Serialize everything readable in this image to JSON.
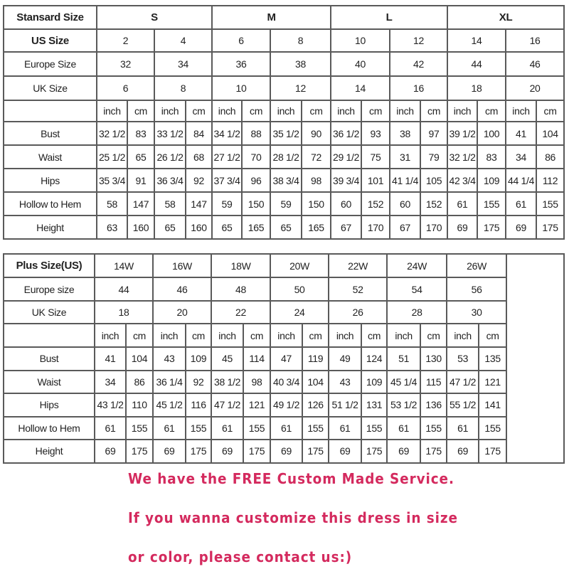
{
  "standard": {
    "header_label": "Stansard Size",
    "groups": [
      "S",
      "M",
      "L",
      "XL"
    ],
    "us_label": "US Size",
    "us": [
      "2",
      "4",
      "6",
      "8",
      "10",
      "12",
      "14",
      "16"
    ],
    "europe_label": "Europe Size",
    "europe": [
      "32",
      "34",
      "36",
      "38",
      "40",
      "42",
      "44",
      "46"
    ],
    "uk_label": "UK Size",
    "uk": [
      "6",
      "8",
      "10",
      "12",
      "14",
      "16",
      "18",
      "20"
    ],
    "units": [
      "inch",
      "cm"
    ],
    "measurements": [
      {
        "label": "Bust",
        "values": [
          "32 1/2",
          "83",
          "33 1/2",
          "84",
          "34 1/2",
          "88",
          "35 1/2",
          "90",
          "36 1/2",
          "93",
          "38",
          "97",
          "39 1/2",
          "100",
          "41",
          "104"
        ]
      },
      {
        "label": "Waist",
        "values": [
          "25 1/2",
          "65",
          "26 1/2",
          "68",
          "27 1/2",
          "70",
          "28 1/2",
          "72",
          "29 1/2",
          "75",
          "31",
          "79",
          "32 1/2",
          "83",
          "34",
          "86"
        ]
      },
      {
        "label": "Hips",
        "values": [
          "35 3/4",
          "91",
          "36 3/4",
          "92",
          "37 3/4",
          "96",
          "38 3/4",
          "98",
          "39 3/4",
          "101",
          "41 1/4",
          "105",
          "42 3/4",
          "109",
          "44 1/4",
          "112"
        ]
      },
      {
        "label": "Hollow to Hem",
        "values": [
          "58",
          "147",
          "58",
          "147",
          "59",
          "150",
          "59",
          "150",
          "60",
          "152",
          "60",
          "152",
          "61",
          "155",
          "61",
          "155"
        ]
      },
      {
        "label": "Height",
        "values": [
          "63",
          "160",
          "65",
          "160",
          "65",
          "165",
          "65",
          "165",
          "67",
          "170",
          "67",
          "170",
          "69",
          "175",
          "69",
          "175"
        ]
      }
    ]
  },
  "plus": {
    "header_label": "Plus Size(US)",
    "sizes": [
      "14W",
      "16W",
      "18W",
      "20W",
      "22W",
      "24W",
      "26W"
    ],
    "europe_label": "Europe size",
    "europe": [
      "44",
      "46",
      "48",
      "50",
      "52",
      "54",
      "56"
    ],
    "uk_label": "UK Size",
    "uk": [
      "18",
      "20",
      "22",
      "24",
      "26",
      "28",
      "30"
    ],
    "units": [
      "inch",
      "cm"
    ],
    "measurements": [
      {
        "label": "Bust",
        "values": [
          "41",
          "104",
          "43",
          "109",
          "45",
          "114",
          "47",
          "119",
          "49",
          "124",
          "51",
          "130",
          "53",
          "135"
        ]
      },
      {
        "label": "Waist",
        "values": [
          "34",
          "86",
          "36 1/4",
          "92",
          "38 1/2",
          "98",
          "40 3/4",
          "104",
          "43",
          "109",
          "45 1/4",
          "115",
          "47 1/2",
          "121"
        ]
      },
      {
        "label": "Hips",
        "values": [
          "43 1/2",
          "110",
          "45 1/2",
          "116",
          "47 1/2",
          "121",
          "49 1/2",
          "126",
          "51 1/2",
          "131",
          "53 1/2",
          "136",
          "55 1/2",
          "141"
        ]
      },
      {
        "label": "Hollow to Hem",
        "values": [
          "61",
          "155",
          "61",
          "155",
          "61",
          "155",
          "61",
          "155",
          "61",
          "155",
          "61",
          "155",
          "61",
          "155"
        ]
      },
      {
        "label": "Height",
        "values": [
          "69",
          "175",
          "69",
          "175",
          "69",
          "175",
          "69",
          "175",
          "69",
          "175",
          "69",
          "175",
          "69",
          "175"
        ]
      }
    ]
  },
  "notes": [
    "We have the FREE Custom Made Service.",
    "If you wanna customize this dress in size",
    "or color, please contact us:)"
  ],
  "colors": {
    "note_text": "#d42a5e",
    "border": "#5a5a5a"
  }
}
